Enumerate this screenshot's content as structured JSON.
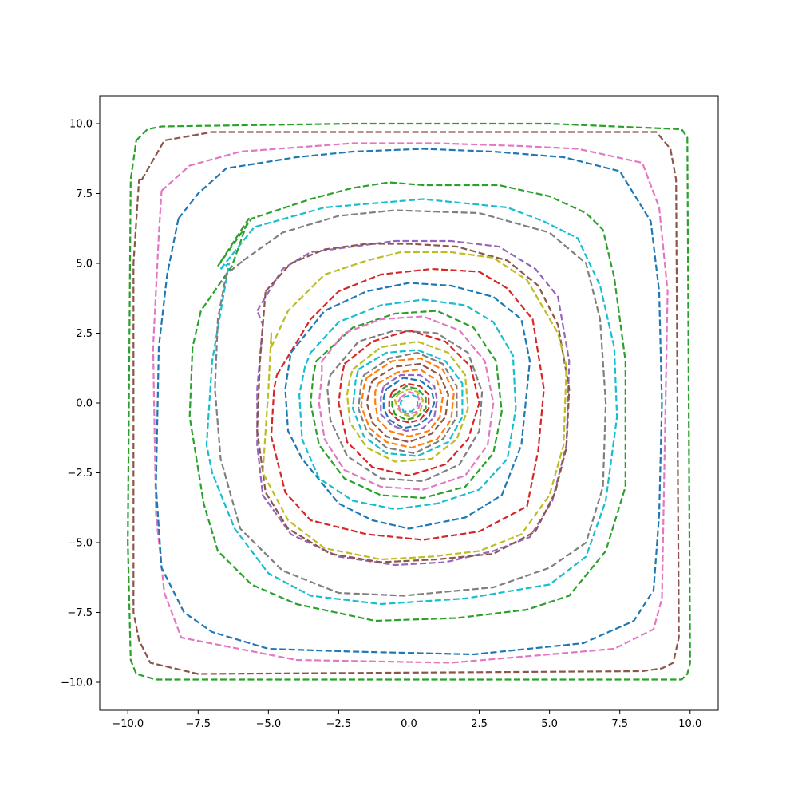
{
  "chart_data": {
    "type": "line",
    "title": "",
    "xlabel": "",
    "ylabel": "",
    "xlim": [
      -11,
      11
    ],
    "ylim": [
      -11,
      11
    ],
    "grid": false,
    "legend": "none",
    "line_style": "dashed",
    "x_ticks": [
      -10.0,
      -7.5,
      -5.0,
      -2.5,
      0.0,
      2.5,
      5.0,
      7.5,
      10.0
    ],
    "x_tick_labels": [
      "−10.0",
      "−7.5",
      "−5.0",
      "−2.5",
      "0.0",
      "2.5",
      "5.0",
      "7.5",
      "10.0"
    ],
    "y_ticks": [
      -10.0,
      -7.5,
      -5.0,
      -2.5,
      0.0,
      2.5,
      5.0,
      7.5,
      10.0
    ],
    "y_tick_labels": [
      "−10.0",
      "−7.5",
      "−5.0",
      "−2.5",
      "0.0",
      "2.5",
      "5.0",
      "7.5",
      "10.0"
    ],
    "palette": [
      "#1f77b4",
      "#ff7f0e",
      "#2ca02c",
      "#d62728",
      "#9467bd",
      "#8c564b",
      "#e377c2",
      "#7f7f7f",
      "#bcbd22",
      "#17becf"
    ],
    "series": [
      {
        "color": "#2ca02c",
        "x": [
          -9.7,
          -9.3,
          -8.8,
          -2.0,
          5.0,
          9.7,
          9.9,
          10.0,
          9.9,
          9.8,
          9.7,
          -9.0,
          -9.7,
          -9.9,
          -10.0,
          -9.9
        ],
        "y": [
          9.4,
          9.8,
          9.9,
          10.0,
          10.0,
          9.8,
          9.5,
          -9.3,
          -9.7,
          -9.8,
          -9.9,
          -9.9,
          -9.7,
          -9.2,
          -5.0,
          8.0
        ]
      },
      {
        "color": "#8c564b",
        "x": [
          -9.5,
          -8.7,
          -7.0,
          8.8,
          9.3,
          9.5,
          9.6,
          9.4,
          9.0,
          8.3,
          -7.5,
          -9.2,
          -9.6,
          -9.8,
          -9.8,
          -9.6
        ],
        "y": [
          8.0,
          9.4,
          9.7,
          9.7,
          9.1,
          8.0,
          -8.4,
          -9.3,
          -9.5,
          -9.6,
          -9.7,
          -9.3,
          -8.5,
          -7.5,
          5.0,
          8.0
        ]
      },
      {
        "color": "#e377c2",
        "x": [
          -8.8,
          -7.8,
          -6.0,
          -2.0,
          1.0,
          4.0,
          6.0,
          8.3,
          8.9,
          9.2,
          9.0,
          8.7,
          7.3,
          5.0,
          1.5,
          -4.0,
          -8.1,
          -8.7,
          -9.0,
          -9.1,
          -8.9
        ],
        "y": [
          7.6,
          8.5,
          9.0,
          9.3,
          9.3,
          9.2,
          9.1,
          8.6,
          7.0,
          4.0,
          -7.0,
          -8.1,
          -8.8,
          -9.0,
          -9.3,
          -9.2,
          -8.4,
          -6.8,
          -4.0,
          2.0,
          6.0
        ]
      },
      {
        "color": "#1f77b4",
        "x": [
          -8.2,
          -7.5,
          -6.5,
          -4.0,
          -2.0,
          0.5,
          3.0,
          5.5,
          7.5,
          8.6,
          8.9,
          9.0,
          8.9,
          8.7,
          8.0,
          6.2,
          2.3,
          -2.0,
          -5.0,
          -7.0,
          -8.0,
          -8.8,
          -9.0,
          -8.9,
          -8.6
        ],
        "y": [
          6.6,
          7.5,
          8.4,
          8.8,
          9.0,
          9.1,
          9.0,
          8.8,
          8.3,
          6.5,
          4.0,
          0.0,
          -4.0,
          -6.7,
          -7.8,
          -8.6,
          -9.0,
          -8.9,
          -8.8,
          -8.2,
          -7.5,
          -5.9,
          -3.0,
          2.0,
          4.6
        ]
      },
      {
        "color": "#2ca02c",
        "x": [
          -6.8,
          -5.6,
          -3.5,
          -2.0,
          -0.7,
          0.5,
          3.2,
          5.0,
          6.3,
          6.9,
          7.3,
          7.7,
          7.7,
          7.0,
          5.7,
          4.2,
          1.7,
          -1.2,
          -4.0,
          -5.6,
          -6.8,
          -7.3,
          -7.8,
          -7.7,
          -7.4,
          -6.3,
          -5.7
        ],
        "y": [
          4.9,
          6.6,
          7.3,
          7.7,
          7.9,
          7.8,
          7.8,
          7.4,
          6.8,
          6.2,
          4.5,
          1.5,
          -3.0,
          -5.3,
          -6.9,
          -7.4,
          -7.7,
          -7.8,
          -7.2,
          -6.5,
          -5.3,
          -3.6,
          -0.5,
          2.0,
          3.3,
          4.9,
          6.6
        ]
      },
      {
        "color": "#17becf",
        "x": [
          -6.7,
          -5.5,
          -3.0,
          0.5,
          3.5,
          4.8,
          6.0,
          6.8,
          7.3,
          7.4,
          7.0,
          6.3,
          5.0,
          2.0,
          -1.0,
          -3.5,
          -5.0,
          -6.2,
          -7.0,
          -7.2,
          -7.0,
          -6.4
        ],
        "y": [
          4.8,
          6.3,
          7.0,
          7.3,
          7.0,
          6.5,
          5.9,
          4.2,
          2.0,
          -0.5,
          -3.5,
          -5.5,
          -6.5,
          -7.0,
          -7.2,
          -6.9,
          -6.1,
          -4.5,
          -2.5,
          -1.5,
          1.5,
          5.0
        ]
      },
      {
        "color": "#7f7f7f",
        "x": [
          -5.9,
          -4.5,
          -2.5,
          -0.5,
          2.5,
          5.0,
          6.3,
          6.8,
          7.0,
          6.9,
          6.3,
          5.0,
          3.0,
          -0.2,
          -2.5,
          -4.5,
          -6.0,
          -6.7,
          -6.9,
          -6.8,
          -6.5
        ],
        "y": [
          5.1,
          6.1,
          6.7,
          6.9,
          6.8,
          6.1,
          5.0,
          3.0,
          0.0,
          -3.0,
          -5.0,
          -5.9,
          -6.6,
          -6.9,
          -6.8,
          -6.0,
          -4.5,
          -2.0,
          0.5,
          3.0,
          4.6
        ]
      },
      {
        "color": "#9467bd",
        "x": [
          -5.4,
          -4.5,
          -3.5,
          -2.0,
          -0.5,
          1.5,
          3.2,
          4.5,
          5.3,
          5.7,
          5.6,
          5.1,
          4.3,
          3.0,
          1.3,
          -0.5,
          -2.5,
          -4.2,
          -5.2,
          -5.4,
          -5.4,
          -5.2
        ],
        "y": [
          3.3,
          4.8,
          5.4,
          5.6,
          5.8,
          5.8,
          5.6,
          4.8,
          3.8,
          1.5,
          -1.5,
          -3.5,
          -4.8,
          -5.3,
          -5.7,
          -5.8,
          -5.5,
          -4.7,
          -3.3,
          -1.5,
          0.5,
          2.8
        ]
      },
      {
        "color": "#8c564b",
        "x": [
          -5.1,
          -4.2,
          -3.0,
          -1.5,
          0.0,
          1.7,
          3.5,
          4.6,
          5.3,
          5.7,
          5.6,
          5.2,
          4.5,
          3.0,
          1.0,
          -1.0,
          -2.8,
          -4.3,
          -5.1,
          -5.4,
          -5.3
        ],
        "y": [
          4.0,
          5.0,
          5.5,
          5.7,
          5.7,
          5.6,
          5.1,
          4.2,
          2.8,
          0.5,
          -1.6,
          -3.2,
          -4.6,
          -5.4,
          -5.6,
          -5.7,
          -5.4,
          -4.5,
          -3.2,
          -1.0,
          1.5
        ]
      },
      {
        "color": "#bcbd22",
        "x": [
          -4.9,
          -4.3,
          -3.0,
          -1.5,
          -0.3,
          1.5,
          3.0,
          4.2,
          5.3,
          5.6,
          5.5,
          5.0,
          4.0,
          2.5,
          0.8,
          -1.0,
          -3.0,
          -4.3,
          -5.2,
          -5.0,
          -4.9
        ],
        "y": [
          2.0,
          3.3,
          4.6,
          5.1,
          5.4,
          5.4,
          5.2,
          4.4,
          2.5,
          1.3,
          -1.5,
          -3.3,
          -4.7,
          -5.3,
          -5.5,
          -5.6,
          -5.2,
          -4.2,
          -2.5,
          0.5,
          2.5
        ]
      },
      {
        "color": "#d62728",
        "x": [
          -4.7,
          -3.5,
          -2.5,
          -1.0,
          0.8,
          2.5,
          3.5,
          4.4,
          4.8,
          4.6,
          4.2,
          2.5,
          0.5,
          -1.5,
          -3.5,
          -4.4,
          -4.9,
          -4.8
        ],
        "y": [
          1.0,
          3.0,
          4.0,
          4.6,
          4.8,
          4.7,
          4.1,
          3.0,
          0.5,
          -1.7,
          -3.7,
          -4.6,
          -4.9,
          -4.7,
          -4.2,
          -3.2,
          -1.2,
          0.5
        ]
      },
      {
        "color": "#1f77b4",
        "x": [
          -4.2,
          -3.0,
          -1.5,
          0.0,
          1.5,
          3.0,
          4.0,
          4.3,
          4.0,
          3.3,
          2.0,
          0.0,
          -1.3,
          -2.5,
          -3.8,
          -4.3,
          -4.4,
          -4.2
        ],
        "y": [
          1.8,
          3.3,
          4.0,
          4.3,
          4.2,
          3.8,
          3.0,
          1.5,
          -1.5,
          -3.3,
          -4.1,
          -4.5,
          -4.2,
          -3.6,
          -2.0,
          -1.0,
          0.5,
          1.8
        ]
      },
      {
        "color": "#17becf",
        "x": [
          -3.5,
          -2.5,
          -1.0,
          0.5,
          2.0,
          3.0,
          3.7,
          3.8,
          3.5,
          2.5,
          1.0,
          -0.5,
          -2.0,
          -3.2,
          -3.8,
          -3.9,
          -3.7
        ],
        "y": [
          1.8,
          2.9,
          3.5,
          3.7,
          3.5,
          2.9,
          1.7,
          -0.2,
          -2.0,
          -3.1,
          -3.6,
          -3.8,
          -3.5,
          -2.7,
          -1.3,
          0.3,
          1.3
        ]
      },
      {
        "color": "#2ca02c",
        "x": [
          -3.3,
          -2.0,
          -0.5,
          1.0,
          2.3,
          3.1,
          3.3,
          3.0,
          2.0,
          0.5,
          -1.0,
          -2.3,
          -3.2,
          -3.5,
          -3.4
        ],
        "y": [
          1.5,
          2.7,
          3.2,
          3.3,
          2.7,
          1.5,
          -0.3,
          -1.8,
          -3.0,
          -3.4,
          -3.3,
          -2.7,
          -1.5,
          0.0,
          1.0
        ]
      },
      {
        "color": "#e377c2",
        "x": [
          -3.1,
          -2.3,
          -1.0,
          0.5,
          1.8,
          2.7,
          3.0,
          2.8,
          2.0,
          0.5,
          -1.0,
          -2.3,
          -3.0,
          -3.2,
          -3.1
        ],
        "y": [
          1.5,
          2.5,
          3.0,
          3.1,
          2.6,
          1.5,
          0.0,
          -1.5,
          -2.6,
          -3.1,
          -3.0,
          -2.4,
          -1.3,
          0.0,
          1.0
        ]
      },
      {
        "color": "#7f7f7f",
        "x": [
          -2.8,
          -1.8,
          -0.5,
          1.0,
          2.1,
          2.6,
          2.5,
          1.8,
          0.5,
          -1.0,
          -2.2,
          -2.8,
          -2.9
        ],
        "y": [
          1.0,
          2.2,
          2.6,
          2.5,
          1.8,
          0.4,
          -1.0,
          -2.2,
          -2.8,
          -2.7,
          -1.9,
          -0.6,
          0.5
        ]
      },
      {
        "color": "#d62728",
        "x": [
          -2.3,
          -1.3,
          0.0,
          1.3,
          2.2,
          2.5,
          2.1,
          1.3,
          0.0,
          -1.3,
          -2.2,
          -2.5,
          -2.4
        ],
        "y": [
          1.4,
          2.2,
          2.6,
          2.2,
          1.3,
          0.0,
          -1.3,
          -2.2,
          -2.6,
          -2.3,
          -1.4,
          0.0,
          0.9
        ]
      },
      {
        "color": "#bcbd22",
        "x": [
          -2.0,
          -1.0,
          0.3,
          1.4,
          2.0,
          2.1,
          1.7,
          0.8,
          -0.5,
          -1.5,
          -2.1,
          -2.2,
          -2.1
        ],
        "y": [
          1.2,
          2.0,
          2.2,
          1.8,
          1.0,
          -0.2,
          -1.3,
          -2.0,
          -2.1,
          -1.6,
          -0.7,
          0.3,
          0.9
        ]
      },
      {
        "color": "#17becf",
        "x": [
          -1.8,
          -0.8,
          0.3,
          1.3,
          1.9,
          1.9,
          1.4,
          0.3,
          -0.8,
          -1.6,
          -2.0,
          -1.9
        ],
        "y": [
          1.2,
          1.8,
          1.9,
          1.5,
          0.7,
          -0.5,
          -1.4,
          -1.9,
          -1.8,
          -1.2,
          -0.2,
          0.8
        ]
      },
      {
        "color": "#7f7f7f",
        "x": [
          -1.6,
          -0.7,
          0.3,
          1.2,
          1.7,
          1.7,
          1.2,
          0.2,
          -0.8,
          -1.5,
          -1.8,
          -1.7
        ],
        "y": [
          1.0,
          1.6,
          1.8,
          1.4,
          0.6,
          -0.5,
          -1.3,
          -1.8,
          -1.6,
          -1.0,
          -0.2,
          0.7
        ]
      },
      {
        "color": "#ff7f0e",
        "x": [
          -1.5,
          -0.6,
          0.4,
          1.2,
          1.6,
          1.5,
          1.0,
          0.1,
          -0.8,
          -1.4,
          -1.7,
          -1.6
        ],
        "y": [
          0.9,
          1.5,
          1.6,
          1.2,
          0.4,
          -0.6,
          -1.3,
          -1.6,
          -1.4,
          -0.9,
          -0.1,
          0.6
        ]
      },
      {
        "color": "#8c564b",
        "x": [
          -1.3,
          -0.5,
          0.4,
          1.1,
          1.4,
          1.3,
          0.8,
          0.0,
          -0.8,
          -1.3,
          -1.5,
          -1.4
        ],
        "y": [
          0.8,
          1.3,
          1.4,
          1.0,
          0.3,
          -0.5,
          -1.1,
          -1.4,
          -1.2,
          -0.7,
          0.0,
          0.5
        ]
      },
      {
        "color": "#ff7f0e",
        "x": [
          -1.1,
          -0.4,
          0.4,
          1.0,
          1.2,
          1.1,
          0.7,
          0.0,
          -0.7,
          -1.1,
          -1.2,
          -1.2
        ],
        "y": [
          0.7,
          1.1,
          1.2,
          0.8,
          0.2,
          -0.5,
          -1.0,
          -1.2,
          -1.0,
          -0.6,
          0.0,
          0.4
        ]
      },
      {
        "color": "#9467bd",
        "x": [
          -0.9,
          -0.3,
          0.4,
          0.9,
          1.0,
          0.9,
          0.5,
          -0.1,
          -0.6,
          -1.0,
          -1.0
        ],
        "y": [
          0.6,
          1.0,
          1.0,
          0.6,
          0.1,
          -0.5,
          -0.9,
          -1.0,
          -0.8,
          -0.4,
          0.2
        ]
      },
      {
        "color": "#1f77b4",
        "x": [
          -0.8,
          -0.2,
          0.4,
          0.8,
          0.9,
          0.7,
          0.3,
          -0.2,
          -0.7,
          -0.9,
          -0.9
        ],
        "y": [
          0.5,
          0.9,
          0.8,
          0.5,
          0.0,
          -0.5,
          -0.8,
          -0.9,
          -0.6,
          -0.2,
          0.2
        ]
      },
      {
        "color": "#d62728",
        "x": [
          -0.6,
          -0.1,
          0.4,
          0.7,
          0.7,
          0.4,
          0.0,
          -0.4,
          -0.7,
          -0.7
        ],
        "y": [
          0.4,
          0.7,
          0.6,
          0.3,
          -0.2,
          -0.6,
          -0.7,
          -0.6,
          -0.3,
          0.1
        ]
      },
      {
        "color": "#2ca02c",
        "x": [
          -0.5,
          -0.1,
          0.3,
          0.6,
          0.6,
          0.3,
          -0.1,
          -0.5,
          -0.6,
          -0.6
        ],
        "y": [
          0.3,
          0.6,
          0.5,
          0.2,
          -0.2,
          -0.5,
          -0.6,
          -0.4,
          -0.1,
          0.2
        ]
      },
      {
        "color": "#bcbd22",
        "x": [
          -0.4,
          0.0,
          0.3,
          0.5,
          0.4,
          0.1,
          -0.2,
          -0.4,
          -0.5
        ],
        "y": [
          0.3,
          0.5,
          0.4,
          0.1,
          -0.3,
          -0.5,
          -0.4,
          -0.2,
          0.1
        ]
      },
      {
        "color": "#e377c2",
        "x": [
          -0.3,
          0.0,
          0.3,
          0.4,
          0.3,
          0.0,
          -0.3,
          -0.4,
          -0.3
        ],
        "y": [
          0.2,
          0.4,
          0.3,
          0.0,
          -0.3,
          -0.4,
          -0.3,
          0.0,
          0.2
        ]
      },
      {
        "color": "#17becf",
        "x": [
          -0.2,
          0.1,
          0.3,
          0.3,
          0.1,
          -0.2,
          -0.3,
          -0.2
        ],
        "y": [
          0.2,
          0.3,
          0.2,
          -0.1,
          -0.3,
          -0.3,
          0.0,
          0.2
        ]
      }
    ]
  }
}
